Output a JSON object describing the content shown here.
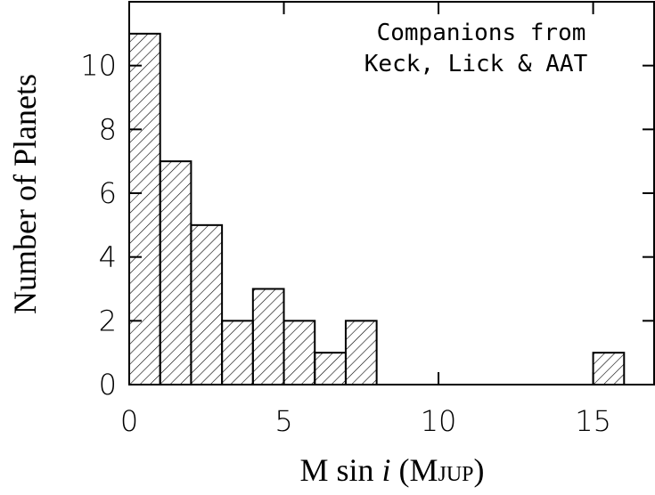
{
  "chart_data": {
    "type": "histogram",
    "ylabel": "Number of Planets",
    "xlabel": [
      "M sin",
      "i",
      "(M",
      "JUP",
      ")"
    ],
    "annotation": [
      "Companions from",
      "Keck, Lick & AAT"
    ],
    "bins": [
      0,
      1,
      2,
      3,
      4,
      5,
      6,
      7,
      8,
      9,
      10,
      11,
      12,
      13,
      14,
      15,
      16
    ],
    "counts": [
      11,
      7,
      5,
      2,
      3,
      2,
      1,
      2,
      0,
      0,
      0,
      0,
      0,
      0,
      0,
      1
    ],
    "color": "#000000",
    "hatch": true,
    "xlim": [
      0,
      17
    ],
    "xticks": [
      0,
      5,
      10,
      15
    ],
    "ylim": [
      0,
      12
    ],
    "yticks": [
      0,
      2,
      4,
      6,
      8,
      10
    ]
  }
}
